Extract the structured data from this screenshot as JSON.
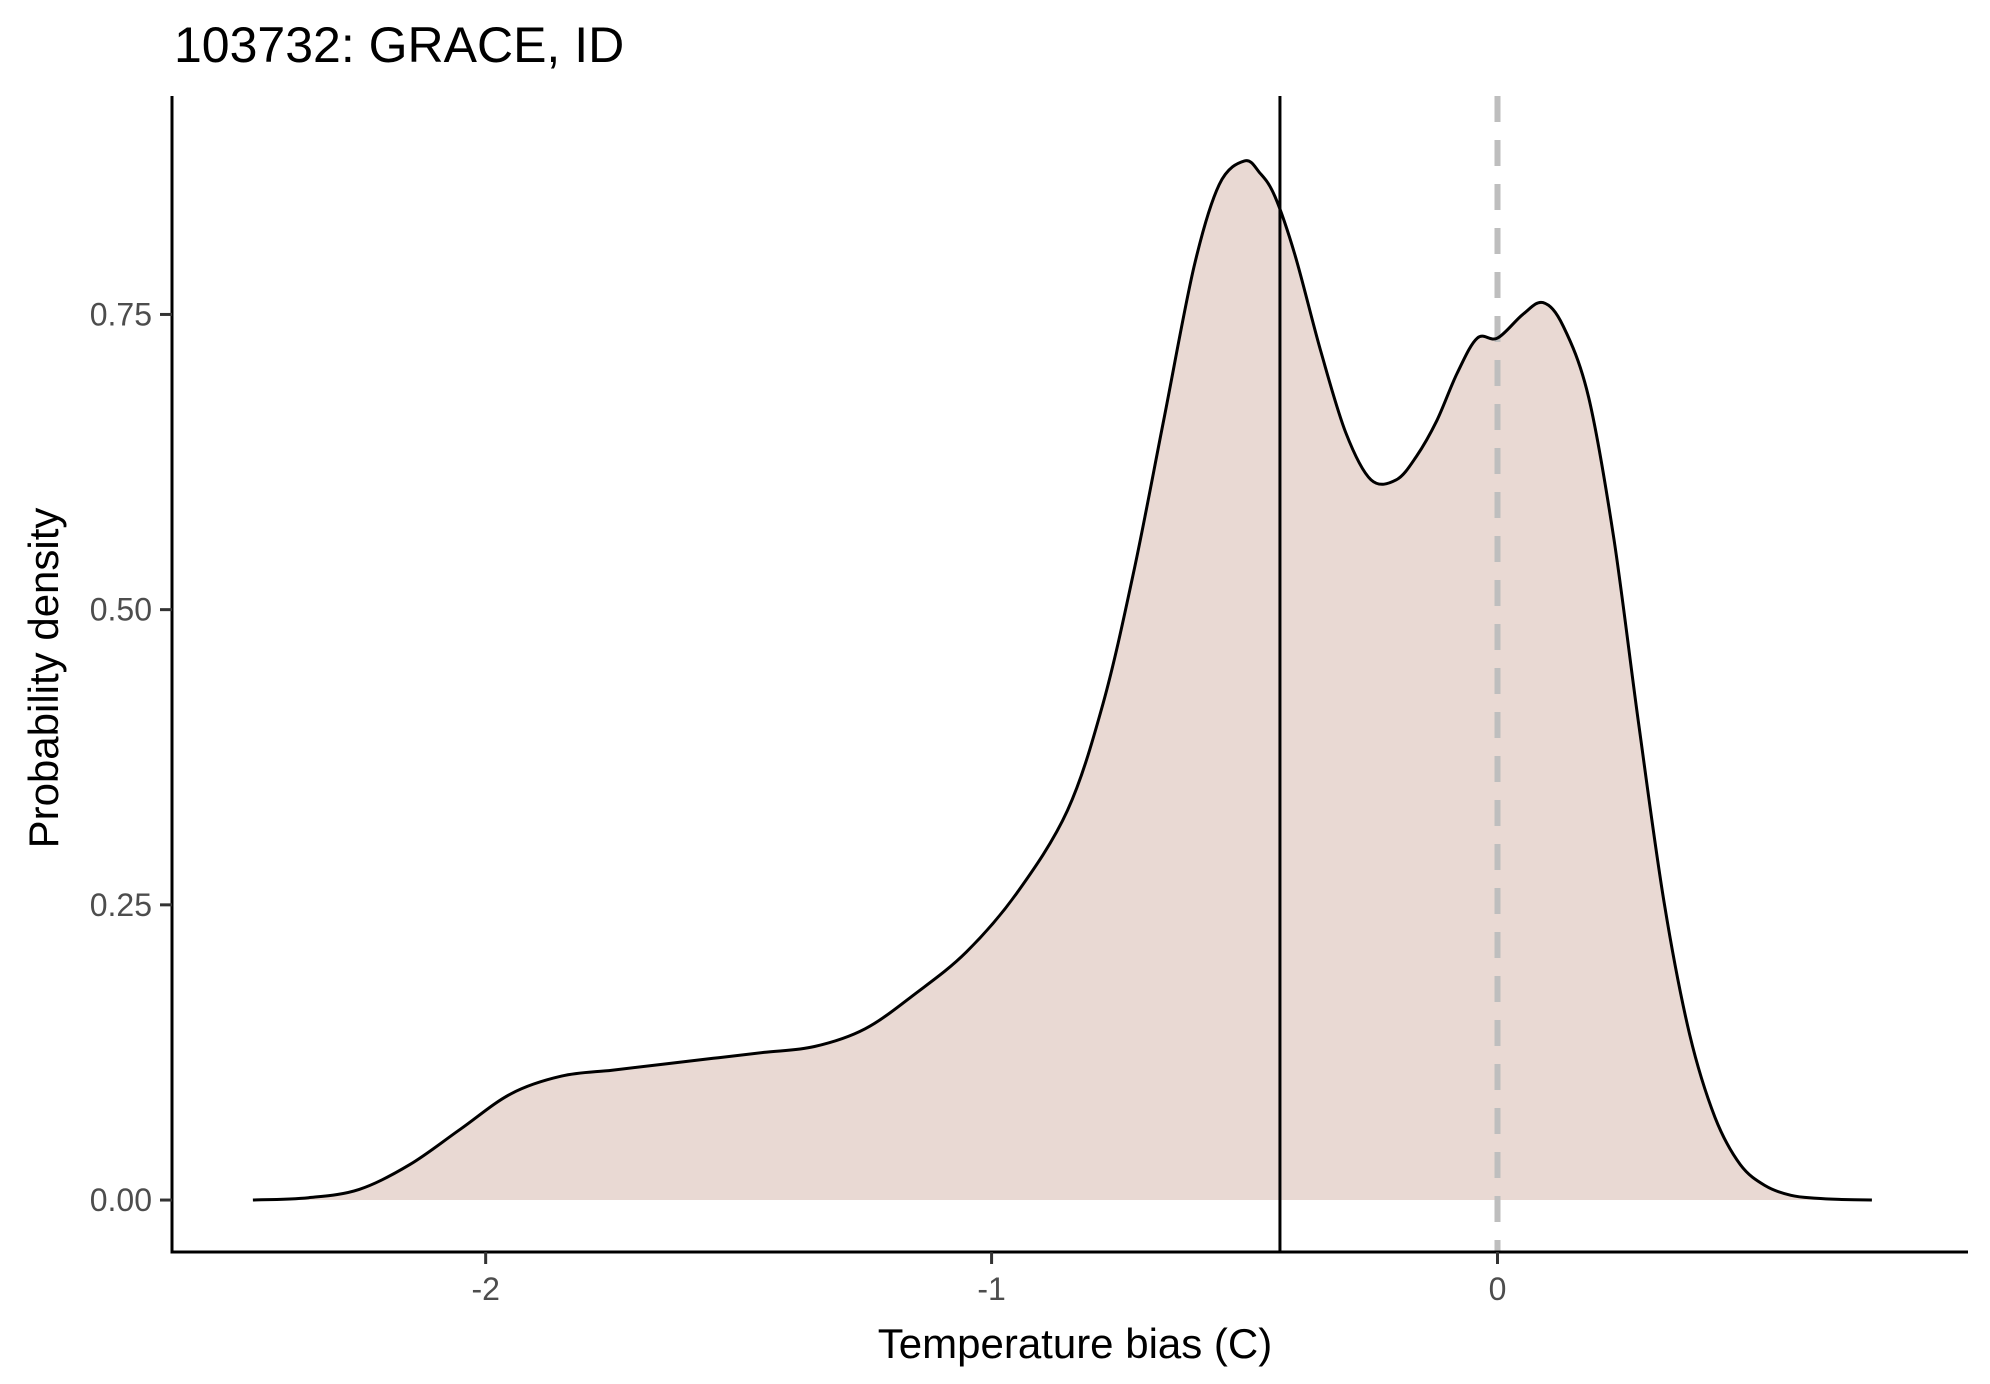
{
  "chart_data": {
    "type": "area",
    "title": "103732: GRACE, ID",
    "xlabel": "Temperature bias (C)",
    "ylabel": "Probability density",
    "xlim": [
      -2.62,
      0.93
    ],
    "ylim": [
      -0.044,
      0.935
    ],
    "x_ticks": [
      {
        "value": -2,
        "label": "-2"
      },
      {
        "value": -1,
        "label": "-1"
      },
      {
        "value": 0,
        "label": "0"
      }
    ],
    "y_ticks": [
      {
        "value": 0.0,
        "label": "0.00"
      },
      {
        "value": 0.25,
        "label": "0.25"
      },
      {
        "value": 0.5,
        "label": "0.50"
      },
      {
        "value": 0.75,
        "label": "0.75"
      }
    ],
    "grid": false,
    "legend": "none",
    "fill_color": "#e9d9d3",
    "line_color": "#000000",
    "series": [
      {
        "x": [
          -2.46,
          -2.35,
          -2.25,
          -2.15,
          -2.05,
          -1.95,
          -1.85,
          -1.75,
          -1.65,
          -1.55,
          -1.45,
          -1.35,
          -1.25,
          -1.15,
          -1.05,
          -0.95,
          -0.85,
          -0.78,
          -0.72,
          -0.66,
          -0.6,
          -0.55,
          -0.5,
          -0.47,
          -0.44,
          -0.4,
          -0.35,
          -0.3,
          -0.25,
          -0.2,
          -0.16,
          -0.12,
          -0.08,
          -0.04,
          0.0,
          0.05,
          0.09,
          0.13,
          0.18,
          0.23,
          0.28,
          0.33,
          0.38,
          0.43,
          0.48,
          0.53,
          0.58,
          0.63,
          0.68,
          0.74
        ],
        "y": [
          0.0,
          0.002,
          0.009,
          0.03,
          0.06,
          0.09,
          0.105,
          0.11,
          0.115,
          0.12,
          0.125,
          0.13,
          0.145,
          0.175,
          0.21,
          0.26,
          0.33,
          0.42,
          0.53,
          0.66,
          0.79,
          0.86,
          0.88,
          0.87,
          0.85,
          0.8,
          0.72,
          0.65,
          0.61,
          0.61,
          0.63,
          0.66,
          0.7,
          0.73,
          0.73,
          0.75,
          0.76,
          0.74,
          0.68,
          0.56,
          0.4,
          0.25,
          0.14,
          0.07,
          0.03,
          0.012,
          0.004,
          0.0015,
          0.0005,
          0.0
        ]
      }
    ],
    "reference_lines": [
      {
        "axis": "x",
        "value": -0.43,
        "style": "solid",
        "color": "#000000"
      },
      {
        "axis": "x",
        "value": 0.0,
        "style": "dashed",
        "color": "#bebebe"
      }
    ]
  }
}
